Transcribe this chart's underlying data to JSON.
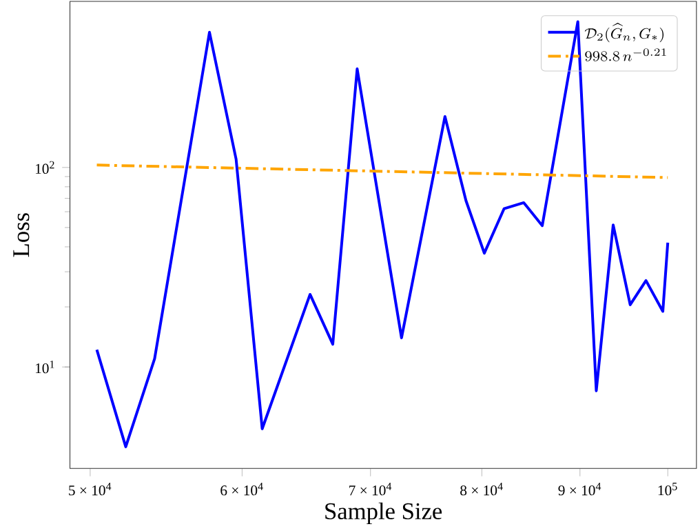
{
  "chart_data": {
    "type": "line",
    "xlabel": "Sample Size",
    "ylabel": "Loss",
    "log": "xy",
    "legend": "top right",
    "x": [
      50400,
      52180,
      54020,
      57700,
      59570,
      61470,
      65100,
      66900,
      68890,
      72660,
      76550,
      78500,
      80240,
      82160,
      84130,
      86020,
      89770,
      91780,
      93660,
      95590,
      97420,
      99410,
      100000
    ],
    "xlim": [
      48800,
      103500
    ],
    "ylim": [
      3.1,
      680
    ],
    "xticks": [
      {
        "value": 50000,
        "label": "5 × 10$^{4}$"
      },
      {
        "value": 60000,
        "label": "6 × 10$^{4}$"
      },
      {
        "value": 70000,
        "label": "7 × 10$^{4}$"
      },
      {
        "value": 80000,
        "label": "8 × 10$^{4}$"
      },
      {
        "value": 90000,
        "label": "9 × 10$^{4}$"
      },
      {
        "value": 100000,
        "label": "10$^{5}$"
      }
    ],
    "yticks": [
      {
        "value": 10,
        "label": "10$^{1}$"
      },
      {
        "value": 100,
        "label": "10$^{2}$"
      }
    ],
    "series": [
      {
        "name": "\\mathcal{D}_2(\\widehat{G}_n, G_*)",
        "color": "#0000ff",
        "line_style": "solid",
        "values": [
          12.2,
          3.98,
          11.0,
          476,
          110,
          4.9,
          23.1,
          13.0,
          312,
          14.0,
          180,
          68.3,
          37.2,
          62.1,
          66.6,
          51.1,
          538,
          7.6,
          51.5,
          20.5,
          27.1,
          19.0,
          42.0
        ]
      },
      {
        "name": "998.8\\, n^{-0.21}",
        "type": "line",
        "color": "#ffa500",
        "line_style": "dashdot",
        "x": [
          50400,
          100000
        ],
        "values": [
          102.8,
          89.0
        ]
      }
    ]
  }
}
